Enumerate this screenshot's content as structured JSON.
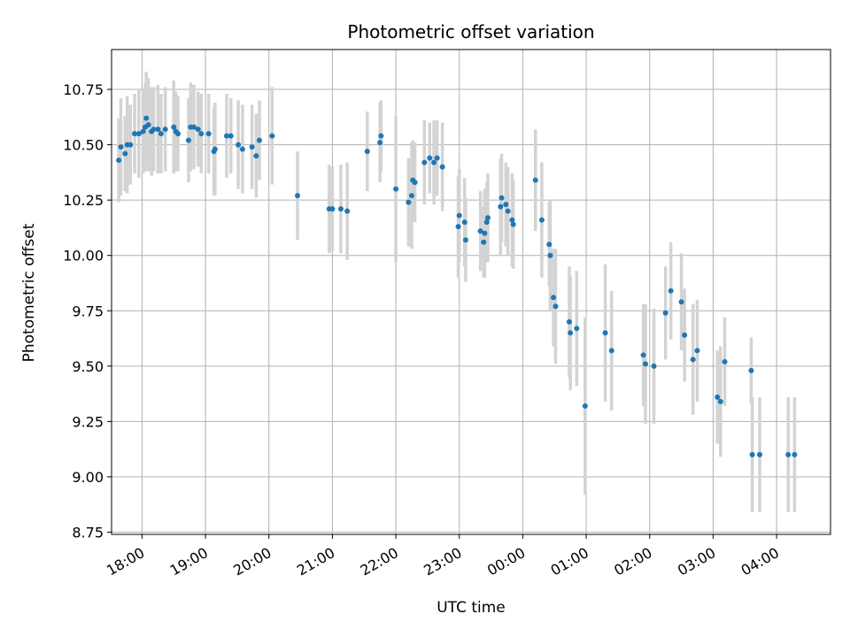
{
  "chart_data": {
    "type": "scatter",
    "title": "Photometric offset variation",
    "xlabel": "UTC time",
    "ylabel": "Photometric offset",
    "x_time_origin": "17:00",
    "xlim_hours": [
      17.52,
      28.85
    ],
    "ylim": [
      8.74,
      10.93
    ],
    "grid": true,
    "x_ticks": [
      {
        "h": 18,
        "label": "18:00"
      },
      {
        "h": 19,
        "label": "19:00"
      },
      {
        "h": 20,
        "label": "20:00"
      },
      {
        "h": 21,
        "label": "21:00"
      },
      {
        "h": 22,
        "label": "22:00"
      },
      {
        "h": 23,
        "label": "23:00"
      },
      {
        "h": 24,
        "label": "00:00"
      },
      {
        "h": 25,
        "label": "01:00"
      },
      {
        "h": 26,
        "label": "02:00"
      },
      {
        "h": 27,
        "label": "03:00"
      },
      {
        "h": 28,
        "label": "04:00"
      }
    ],
    "y_ticks": [
      {
        "v": 8.75,
        "label": "8.75"
      },
      {
        "v": 9.0,
        "label": "9.00"
      },
      {
        "v": 9.25,
        "label": "9.25"
      },
      {
        "v": 9.5,
        "label": "9.50"
      },
      {
        "v": 9.75,
        "label": "9.75"
      },
      {
        "v": 10.0,
        "label": "10.00"
      },
      {
        "v": 10.25,
        "label": "10.25"
      },
      {
        "v": 10.5,
        "label": "10.50"
      },
      {
        "v": 10.75,
        "label": "10.75"
      }
    ],
    "marker_color": "#1f77b4",
    "errorbar_color": "#d3d3d3",
    "points": [
      {
        "t": "17:38",
        "y": 10.43,
        "err": 0.19
      },
      {
        "t": "17:40",
        "y": 10.49,
        "err": 0.22
      },
      {
        "t": "17:44",
        "y": 10.46,
        "err": 0.17
      },
      {
        "t": "17:46",
        "y": 10.5,
        "err": 0.22
      },
      {
        "t": "17:49",
        "y": 10.5,
        "err": 0.18
      },
      {
        "t": "17:53",
        "y": 10.55,
        "err": 0.18
      },
      {
        "t": "17:57",
        "y": 10.55,
        "err": 0.2
      },
      {
        "t": "18:01",
        "y": 10.56,
        "err": 0.19
      },
      {
        "t": "18:03",
        "y": 10.58,
        "err": 0.2
      },
      {
        "t": "18:04",
        "y": 10.62,
        "err": 0.21
      },
      {
        "t": "18:06",
        "y": 10.59,
        "err": 0.21
      },
      {
        "t": "18:09",
        "y": 10.56,
        "err": 0.2
      },
      {
        "t": "18:11",
        "y": 10.57,
        "err": 0.19
      },
      {
        "t": "18:15",
        "y": 10.57,
        "err": 0.2
      },
      {
        "t": "18:18",
        "y": 10.55,
        "err": 0.18
      },
      {
        "t": "18:22",
        "y": 10.57,
        "err": 0.19
      },
      {
        "t": "18:30",
        "y": 10.58,
        "err": 0.21
      },
      {
        "t": "18:32",
        "y": 10.56,
        "err": 0.18
      },
      {
        "t": "18:34",
        "y": 10.55,
        "err": 0.17
      },
      {
        "t": "18:44",
        "y": 10.52,
        "err": 0.19
      },
      {
        "t": "18:46",
        "y": 10.58,
        "err": 0.2
      },
      {
        "t": "18:49",
        "y": 10.58,
        "err": 0.19
      },
      {
        "t": "18:53",
        "y": 10.57,
        "err": 0.17
      },
      {
        "t": "18:56",
        "y": 10.55,
        "err": 0.18
      },
      {
        "t": "19:03",
        "y": 10.55,
        "err": 0.18
      },
      {
        "t": "19:08",
        "y": 10.47,
        "err": 0.2
      },
      {
        "t": "19:09",
        "y": 10.48,
        "err": 0.21
      },
      {
        "t": "19:20",
        "y": 10.54,
        "err": 0.19
      },
      {
        "t": "19:24",
        "y": 10.54,
        "err": 0.17
      },
      {
        "t": "19:31",
        "y": 10.5,
        "err": 0.2
      },
      {
        "t": "19:35",
        "y": 10.48,
        "err": 0.2
      },
      {
        "t": "19:44",
        "y": 10.49,
        "err": 0.19
      },
      {
        "t": "19:48",
        "y": 10.45,
        "err": 0.19
      },
      {
        "t": "19:51",
        "y": 10.52,
        "err": 0.18
      },
      {
        "t": "20:03",
        "y": 10.54,
        "err": 0.22
      },
      {
        "t": "20:27",
        "y": 10.27,
        "err": 0.2
      },
      {
        "t": "20:57",
        "y": 10.21,
        "err": 0.2
      },
      {
        "t": "21:00",
        "y": 10.21,
        "err": 0.19
      },
      {
        "t": "21:08",
        "y": 10.21,
        "err": 0.2
      },
      {
        "t": "21:14",
        "y": 10.2,
        "err": 0.22
      },
      {
        "t": "21:33",
        "y": 10.47,
        "err": 0.18
      },
      {
        "t": "21:45",
        "y": 10.51,
        "err": 0.18
      },
      {
        "t": "21:46",
        "y": 10.54,
        "err": 0.16
      },
      {
        "t": "22:00",
        "y": 10.3,
        "err": 0.33
      },
      {
        "t": "22:12",
        "y": 10.24,
        "err": 0.2
      },
      {
        "t": "22:15",
        "y": 10.27,
        "err": 0.24
      },
      {
        "t": "22:16",
        "y": 10.34,
        "err": 0.18
      },
      {
        "t": "22:18",
        "y": 10.33,
        "err": 0.18
      },
      {
        "t": "22:27",
        "y": 10.42,
        "err": 0.19
      },
      {
        "t": "22:32",
        "y": 10.44,
        "err": 0.16
      },
      {
        "t": "22:36",
        "y": 10.42,
        "err": 0.19
      },
      {
        "t": "22:39",
        "y": 10.44,
        "err": 0.17
      },
      {
        "t": "22:44",
        "y": 10.4,
        "err": 0.2
      },
      {
        "t": "22:59",
        "y": 10.13,
        "err": 0.23
      },
      {
        "t": "23:00",
        "y": 10.18,
        "err": 0.21
      },
      {
        "t": "23:05",
        "y": 10.15,
        "err": 0.2
      },
      {
        "t": "23:06",
        "y": 10.07,
        "err": 0.19
      },
      {
        "t": "23:20",
        "y": 10.11,
        "err": 0.18
      },
      {
        "t": "23:23",
        "y": 10.06,
        "err": 0.16
      },
      {
        "t": "23:24",
        "y": 10.1,
        "err": 0.2
      },
      {
        "t": "23:26",
        "y": 10.15,
        "err": 0.18
      },
      {
        "t": "23:27",
        "y": 10.17,
        "err": 0.2
      },
      {
        "t": "23:39",
        "y": 10.22,
        "err": 0.22
      },
      {
        "t": "23:40",
        "y": 10.26,
        "err": 0.2
      },
      {
        "t": "23:44",
        "y": 10.23,
        "err": 0.19
      },
      {
        "t": "23:46",
        "y": 10.2,
        "err": 0.2
      },
      {
        "t": "23:50",
        "y": 10.16,
        "err": 0.21
      },
      {
        "t": "23:51",
        "y": 10.14,
        "err": 0.2
      },
      {
        "t": "00:12",
        "y": 10.34,
        "err": 0.23
      },
      {
        "t": "00:18",
        "y": 10.16,
        "err": 0.26
      },
      {
        "t": "00:25",
        "y": 10.05,
        "err": 0.19
      },
      {
        "t": "00:26",
        "y": 10.0,
        "err": 0.25
      },
      {
        "t": "00:29",
        "y": 9.81,
        "err": 0.22
      },
      {
        "t": "00:31",
        "y": 9.77,
        "err": 0.26
      },
      {
        "t": "00:44",
        "y": 9.7,
        "err": 0.25
      },
      {
        "t": "00:45",
        "y": 9.65,
        "err": 0.26
      },
      {
        "t": "00:51",
        "y": 9.67,
        "err": 0.26
      },
      {
        "t": "00:59",
        "y": 9.32,
        "err": 0.4
      },
      {
        "t": "01:18",
        "y": 9.65,
        "err": 0.31
      },
      {
        "t": "01:24",
        "y": 9.57,
        "err": 0.27
      },
      {
        "t": "01:54",
        "y": 9.55,
        "err": 0.23
      },
      {
        "t": "01:56",
        "y": 9.51,
        "err": 0.27
      },
      {
        "t": "02:04",
        "y": 9.5,
        "err": 0.26
      },
      {
        "t": "02:15",
        "y": 9.74,
        "err": 0.21
      },
      {
        "t": "02:20",
        "y": 9.84,
        "err": 0.22
      },
      {
        "t": "02:30",
        "y": 9.79,
        "err": 0.22
      },
      {
        "t": "02:33",
        "y": 9.64,
        "err": 0.21
      },
      {
        "t": "02:41",
        "y": 9.53,
        "err": 0.25
      },
      {
        "t": "02:45",
        "y": 9.57,
        "err": 0.23
      },
      {
        "t": "03:04",
        "y": 9.36,
        "err": 0.21
      },
      {
        "t": "03:07",
        "y": 9.34,
        "err": 0.25
      },
      {
        "t": "03:11",
        "y": 9.52,
        "err": 0.2
      },
      {
        "t": "03:36",
        "y": 9.48,
        "err": 0.15
      },
      {
        "t": "03:37",
        "y": 9.1,
        "err": 0.26
      },
      {
        "t": "03:44",
        "y": 9.1,
        "err": 0.26
      },
      {
        "t": "04:11",
        "y": 9.1,
        "err": 0.26
      },
      {
        "t": "04:17",
        "y": 9.1,
        "err": 0.26
      }
    ]
  }
}
